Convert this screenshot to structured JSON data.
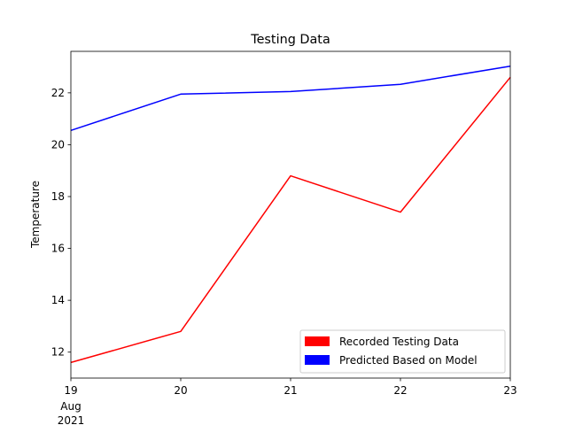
{
  "chart_data": {
    "type": "line",
    "title": "Testing Data",
    "xlabel": "",
    "ylabel": "Temperature",
    "x": [
      "2021-08-19",
      "2021-08-20",
      "2021-08-21",
      "2021-08-22",
      "2021-08-23"
    ],
    "x_tick_labels": [
      "19",
      "20",
      "21",
      "22",
      "23"
    ],
    "x_tick_sublabels": [
      "Aug",
      "2021"
    ],
    "y_ticks": [
      12,
      14,
      16,
      18,
      20,
      22
    ],
    "ylim": [
      11.0,
      23.6
    ],
    "grid": false,
    "legend_position": "lower-right",
    "series": [
      {
        "name": "Recorded Testing Data",
        "color": "#ff0000",
        "values": [
          11.6,
          12.8,
          18.8,
          17.4,
          22.6
        ]
      },
      {
        "name": "Predicted Based on Model",
        "color": "#0000ff",
        "values": [
          20.55,
          21.95,
          22.05,
          22.33,
          23.03
        ]
      }
    ]
  }
}
